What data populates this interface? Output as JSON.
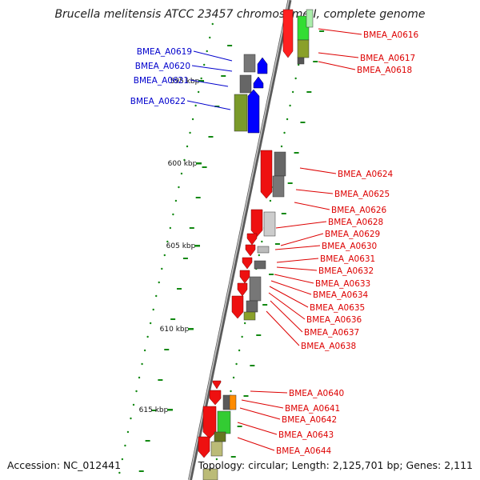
{
  "title": "Brucella melitensis ATCC 23457 chromosome I, complete genome",
  "footer": {
    "accession": "Accession: NC_012441",
    "stats": "Topology: circular; Length: 2,125,701 bp; Genes: 2,111"
  },
  "ticks": [
    "595 kbp",
    "600 kbp",
    "605 kbp",
    "610 kbp",
    "615 kbp"
  ],
  "colors": {
    "forward_cds": "#ff0000",
    "reverse_cds": "#0000ff",
    "backbone": "#888888",
    "label_blue": "#0000cc",
    "label_red": "#dd0000",
    "gc_marks": "#118811"
  },
  "labels_left": [
    "BMEA_A0619",
    "BMEA_A0620",
    "BMEA_A0621",
    "BMEA_A0622"
  ],
  "labels_right": [
    "BMEA_A0616",
    "BMEA_A0617",
    "BMEA_A0618",
    "BMEA_A0624",
    "BMEA_A0625",
    "BMEA_A0626",
    "BMEA_A0628",
    "BMEA_A0629",
    "BMEA_A0630",
    "BMEA_A0631",
    "BMEA_A0632",
    "BMEA_A0633",
    "BMEA_A0634",
    "BMEA_A0635",
    "BMEA_A0636",
    "BMEA_A0637",
    "BMEA_A0638",
    "BMEA_A0640",
    "BMEA_A0641",
    "BMEA_A0642",
    "BMEA_A0643",
    "BMEA_A0644"
  ]
}
